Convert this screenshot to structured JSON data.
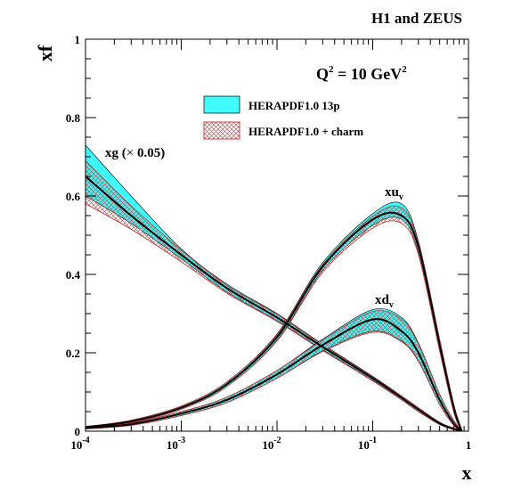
{
  "chart_data": {
    "type": "area",
    "title": "H1 and ZEUS",
    "xlabel": "x",
    "ylabel": "xf",
    "xscale": "log",
    "xlim": [
      0.0001,
      1
    ],
    "ylim": [
      0,
      1
    ],
    "grid": false,
    "legend_position": "top-right",
    "annotation": {
      "base": "Q",
      "sup": "2",
      "mid": " = 10 GeV",
      "sup2": "2"
    },
    "x_ticks": [
      {
        "base": "10",
        "exp": "-4"
      },
      {
        "base": "10",
        "exp": "-3"
      },
      {
        "base": "10",
        "exp": "-2"
      },
      {
        "base": "10",
        "exp": "-1"
      },
      {
        "base": "1",
        "exp": ""
      }
    ],
    "y_ticks": [
      "0",
      "0.2",
      "0.4",
      "0.6",
      "0.8",
      "1"
    ],
    "y_tick_values": [
      0,
      0.2,
      0.4,
      0.6,
      0.8,
      1
    ],
    "legend": [
      {
        "label": "HERAPDF1.0 13p",
        "color": "#3ffbfb",
        "style": "solid"
      },
      {
        "label": "HERAPDF1.0 + charm",
        "color": "#e06060",
        "style": "hatched"
      }
    ],
    "x": [
      0.0001,
      0.0003,
      0.001,
      0.003,
      0.01,
      0.03,
      0.1,
      0.2,
      0.3,
      0.5,
      0.7,
      0.85
    ],
    "series": [
      {
        "name": "xg (× 0.05)",
        "label_parts": {
          "pre": "xg (",
          "sym": "×",
          "post": " 0.05)"
        },
        "central": [
          0.65,
          0.55,
          0.45,
          0.365,
          0.29,
          0.215,
          0.135,
          0.085,
          0.055,
          0.02,
          0.006,
          0.0
        ],
        "band13p": [
          [
            0.6,
            0.73
          ],
          [
            0.53,
            0.6
          ],
          [
            0.44,
            0.465
          ],
          [
            0.355,
            0.375
          ],
          [
            0.282,
            0.3
          ],
          [
            0.208,
            0.222
          ],
          [
            0.13,
            0.14
          ],
          [
            0.08,
            0.09
          ],
          [
            0.05,
            0.06
          ],
          [
            0.017,
            0.023
          ],
          [
            0.004,
            0.008
          ],
          [
            0.0,
            0.002
          ]
        ],
        "band_charm": [
          [
            0.58,
            0.69
          ],
          [
            0.515,
            0.575
          ],
          [
            0.432,
            0.462
          ],
          [
            0.352,
            0.372
          ],
          [
            0.28,
            0.298
          ],
          [
            0.206,
            0.22
          ],
          [
            0.128,
            0.138
          ],
          [
            0.08,
            0.089
          ],
          [
            0.05,
            0.059
          ],
          [
            0.017,
            0.022
          ],
          [
            0.004,
            0.008
          ],
          [
            0.0,
            0.002
          ]
        ]
      },
      {
        "name": "xuv",
        "label_parts": {
          "base": "xu",
          "sub": "v"
        },
        "central": [
          0.01,
          0.025,
          0.06,
          0.12,
          0.24,
          0.42,
          0.54,
          0.55,
          0.47,
          0.22,
          0.06,
          0.0
        ],
        "band13p": [
          [
            0.008,
            0.012
          ],
          [
            0.022,
            0.028
          ],
          [
            0.056,
            0.064
          ],
          [
            0.114,
            0.126
          ],
          [
            0.232,
            0.248
          ],
          [
            0.41,
            0.43
          ],
          [
            0.525,
            0.555
          ],
          [
            0.54,
            0.58
          ],
          [
            0.455,
            0.485
          ],
          [
            0.205,
            0.235
          ],
          [
            0.05,
            0.07
          ],
          [
            0.0,
            0.004
          ]
        ],
        "band_charm": [
          [
            0.008,
            0.012
          ],
          [
            0.022,
            0.028
          ],
          [
            0.056,
            0.064
          ],
          [
            0.114,
            0.126
          ],
          [
            0.23,
            0.246
          ],
          [
            0.405,
            0.425
          ],
          [
            0.518,
            0.548
          ],
          [
            0.53,
            0.57
          ],
          [
            0.45,
            0.48
          ],
          [
            0.205,
            0.233
          ],
          [
            0.05,
            0.07
          ],
          [
            0.0,
            0.004
          ]
        ]
      },
      {
        "name": "xdv",
        "label_parts": {
          "base": "xd",
          "sub": "v"
        },
        "central": [
          0.008,
          0.018,
          0.045,
          0.08,
          0.145,
          0.22,
          0.285,
          0.255,
          0.2,
          0.08,
          0.02,
          0.0
        ],
        "band13p": [
          [
            0.006,
            0.01
          ],
          [
            0.015,
            0.021
          ],
          [
            0.04,
            0.05
          ],
          [
            0.073,
            0.087
          ],
          [
            0.135,
            0.155
          ],
          [
            0.205,
            0.235
          ],
          [
            0.255,
            0.31
          ],
          [
            0.23,
            0.29
          ],
          [
            0.18,
            0.225
          ],
          [
            0.068,
            0.095
          ],
          [
            0.015,
            0.028
          ],
          [
            0.0,
            0.003
          ]
        ],
        "band_charm": [
          [
            0.006,
            0.01
          ],
          [
            0.015,
            0.021
          ],
          [
            0.04,
            0.05
          ],
          [
            0.073,
            0.087
          ],
          [
            0.135,
            0.155
          ],
          [
            0.203,
            0.232
          ],
          [
            0.252,
            0.305
          ],
          [
            0.228,
            0.285
          ],
          [
            0.178,
            0.222
          ],
          [
            0.068,
            0.094
          ],
          [
            0.015,
            0.027
          ],
          [
            0.0,
            0.003
          ]
        ]
      }
    ]
  }
}
